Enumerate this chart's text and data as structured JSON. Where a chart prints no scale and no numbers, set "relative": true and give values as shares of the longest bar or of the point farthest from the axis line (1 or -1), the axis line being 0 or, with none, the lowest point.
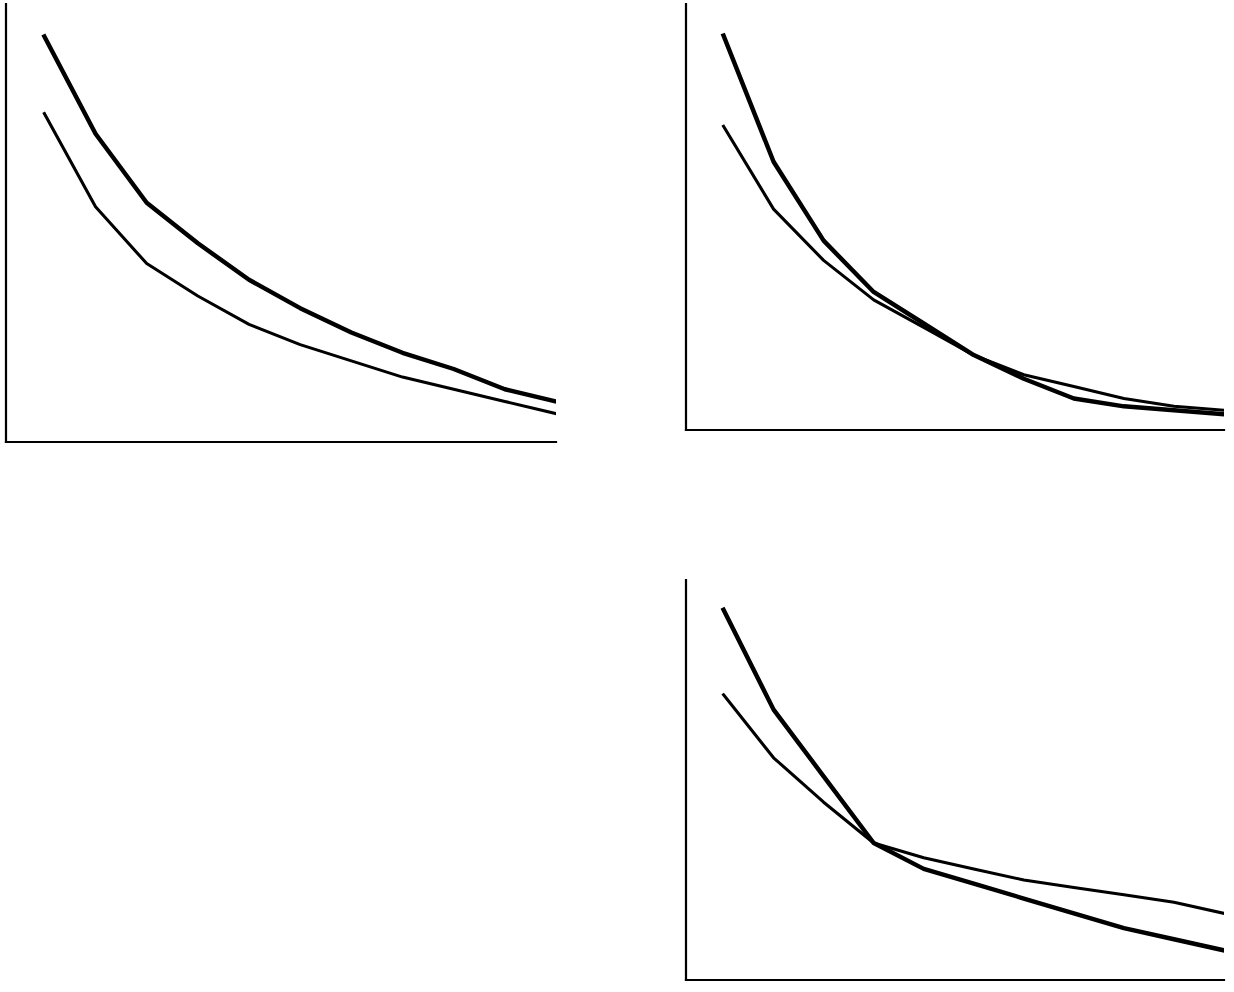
{
  "chart_data": [
    {
      "type": "line",
      "relative": true,
      "categories": [
        null,
        null,
        null,
        null,
        null,
        null,
        null,
        null,
        null,
        null,
        null
      ],
      "series": [
        {
          "color": "#000000",
          "values": [
            1,
            0.76,
            0.59,
            0.49,
            0.4,
            0.33,
            0.27,
            0.22,
            0.18,
            0.13,
            0.1
          ]
        },
        {
          "color": "#000000",
          "values": [
            0.81,
            0.58,
            0.44,
            0.36,
            0.29,
            0.24,
            0.2,
            0.16,
            0.13,
            0.1,
            0.07
          ]
        }
      ],
      "grid": false,
      "marker": "none",
      "line_style": "solid"
    },
    {
      "type": "line",
      "relative": true,
      "categories": [
        null,
        null,
        null,
        null,
        null,
        null,
        null,
        null,
        null,
        null,
        null
      ],
      "series": [
        {
          "color": "#000000",
          "values": [
            1,
            0.68,
            0.48,
            0.35,
            0.27,
            0.19,
            0.13,
            0.08,
            0.06,
            0.05,
            0.04
          ]
        },
        {
          "color": "#000000",
          "values": [
            0.77,
            0.56,
            0.43,
            0.33,
            0.26,
            0.19,
            0.14,
            0.11,
            0.08,
            0.06,
            0.05
          ]
        }
      ],
      "grid": false,
      "marker": "none",
      "line_style": "solid"
    },
    {
      "type": "line",
      "relative": true,
      "categories": [
        null,
        null,
        null,
        null,
        null,
        null,
        null,
        null,
        null,
        null,
        null
      ],
      "series": [
        {
          "color": "#000000",
          "values": [
            1,
            0.73,
            0.55,
            0.37,
            0.3,
            0.26,
            0.22,
            0.18,
            0.14,
            0.11,
            0.08
          ]
        },
        {
          "color": "#000000",
          "values": [
            0.77,
            0.6,
            0.48,
            0.37,
            0.33,
            0.3,
            0.27,
            0.25,
            0.23,
            0.21,
            0.18
          ]
        }
      ],
      "grid": false,
      "marker": "none",
      "line_style": "solid"
    }
  ]
}
